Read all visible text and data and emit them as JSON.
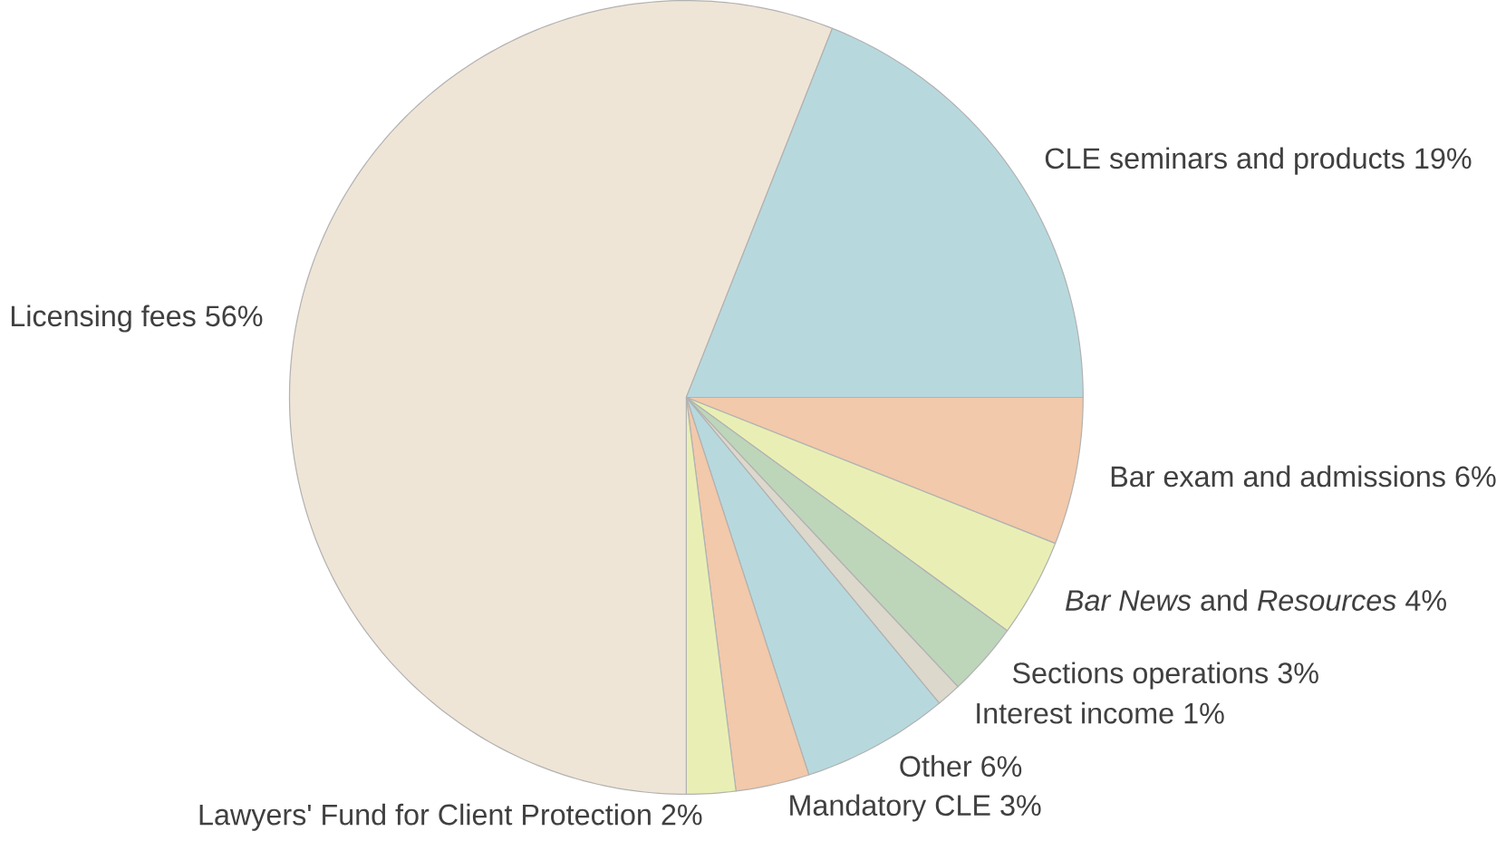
{
  "chart_data": {
    "type": "pie",
    "categories": [
      "Bar exam and admissions",
      "*Bar News* and *Resources*",
      "Sections operations",
      "Interest income",
      "Other",
      "Mandatory CLE",
      "Lawyers' Fund for Client Protection",
      "Licensing fees",
      "CLE seminars and products"
    ],
    "values": [
      6,
      4,
      3,
      1,
      6,
      3,
      2,
      56,
      19
    ],
    "value_labels": [
      "6%",
      "4%",
      "3%",
      "1%",
      "6%",
      "3%",
      "2%",
      "56%",
      "19%"
    ],
    "colors": [
      "#f2c9aa",
      "#e9efb4",
      "#bdd6ba",
      "#ddd8cc",
      "#b7d9de",
      "#f2c9aa",
      "#e9efb4",
      "#efe5d6",
      "#b7d9de"
    ]
  }
}
